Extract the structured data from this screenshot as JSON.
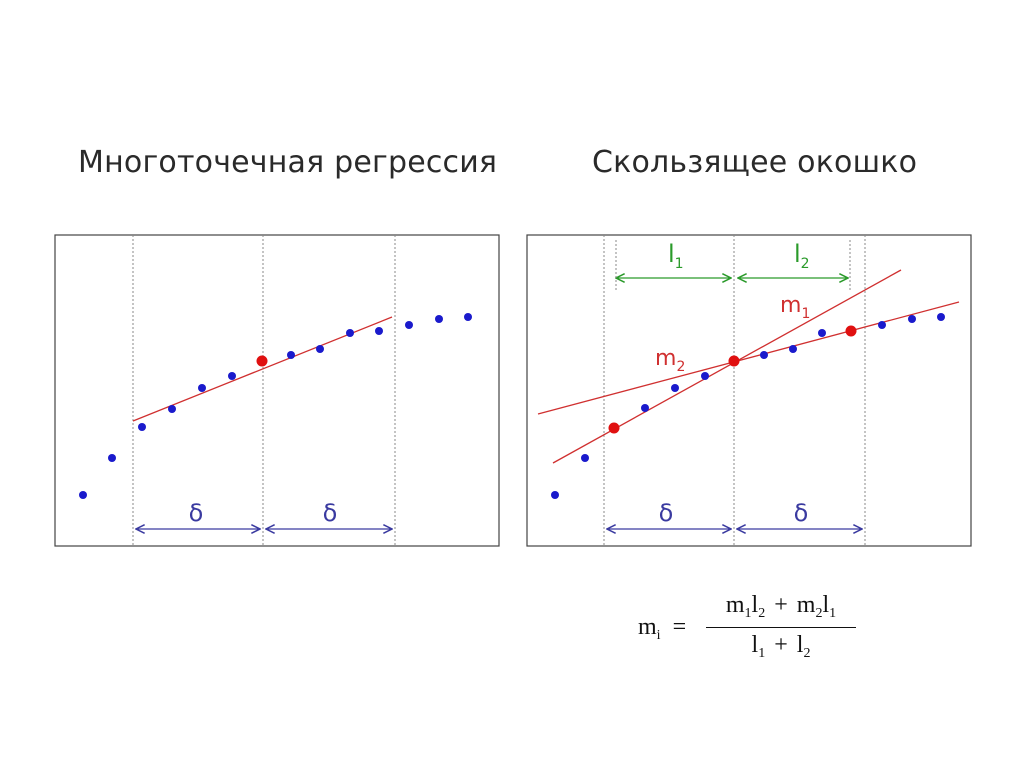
{
  "titles": {
    "left": "Многоточечная регрессия",
    "right": "Скользящее окошко"
  },
  "labels": {
    "delta": "δ",
    "l1": "l",
    "l1_sub": "1",
    "l2": "l",
    "l2_sub": "2",
    "m1": "m",
    "m1_sub": "1",
    "m2": "m",
    "m2_sub": "2"
  },
  "formula": {
    "lhs_base": "m",
    "lhs_sub": "i",
    "equals": "=",
    "num_m1": "m",
    "num_m1_sub": "1",
    "num_l2": "l",
    "num_l2_sub": "2",
    "plus": "+",
    "num_m2": "m",
    "num_m2_sub": "2",
    "num_l1": "l",
    "num_l1_sub": "1",
    "den_l1": "l",
    "den_l1_sub": "1",
    "den_l2": "l",
    "den_l2_sub": "2"
  },
  "colors": {
    "points": "#1a1acc",
    "highlight": "#e01010",
    "line": "#d03030",
    "blue_arrow": "#3a3aa0",
    "green_arrow": "#2a9a2a",
    "frame": "#444444",
    "divider": "#888888"
  }
}
